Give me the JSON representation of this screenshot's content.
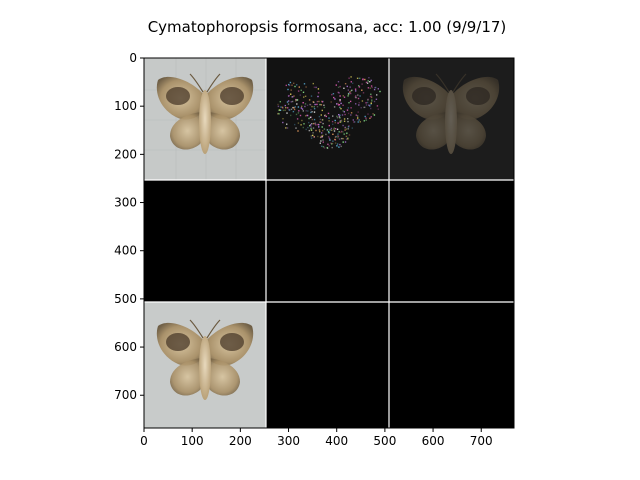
{
  "chart_data": {
    "type": "image-grid",
    "title": "Cymatophoropsis formosana, acc: 1.00 (9/9/17)",
    "xlim": [
      0,
      768
    ],
    "ylim": [
      0,
      768
    ],
    "x_ticks": [
      0,
      100,
      200,
      300,
      400,
      500,
      600,
      700
    ],
    "y_ticks": [
      0,
      100,
      200,
      300,
      400,
      500,
      600,
      700
    ],
    "x_tick_labels": [
      "0",
      "100",
      "200",
      "300",
      "400",
      "500",
      "600",
      "700"
    ],
    "y_tick_labels": [
      "0",
      "100",
      "200",
      "300",
      "400",
      "500",
      "600",
      "700"
    ],
    "grid": {
      "rows": 3,
      "cols": 3,
      "cell_size": 256
    },
    "tiles": [
      {
        "row": 0,
        "col": 0,
        "content": "moth-photo-light-bg"
      },
      {
        "row": 0,
        "col": 1,
        "content": "saliency-map-colored-speckle"
      },
      {
        "row": 0,
        "col": 2,
        "content": "masked-moth-dark"
      },
      {
        "row": 1,
        "col": 0,
        "content": "black"
      },
      {
        "row": 1,
        "col": 1,
        "content": "black"
      },
      {
        "row": 1,
        "col": 2,
        "content": "black"
      },
      {
        "row": 2,
        "col": 0,
        "content": "moth-photo-light-bg"
      },
      {
        "row": 2,
        "col": 1,
        "content": "black"
      },
      {
        "row": 2,
        "col": 2,
        "content": "black"
      }
    ],
    "separator_color": "#ffffff"
  }
}
